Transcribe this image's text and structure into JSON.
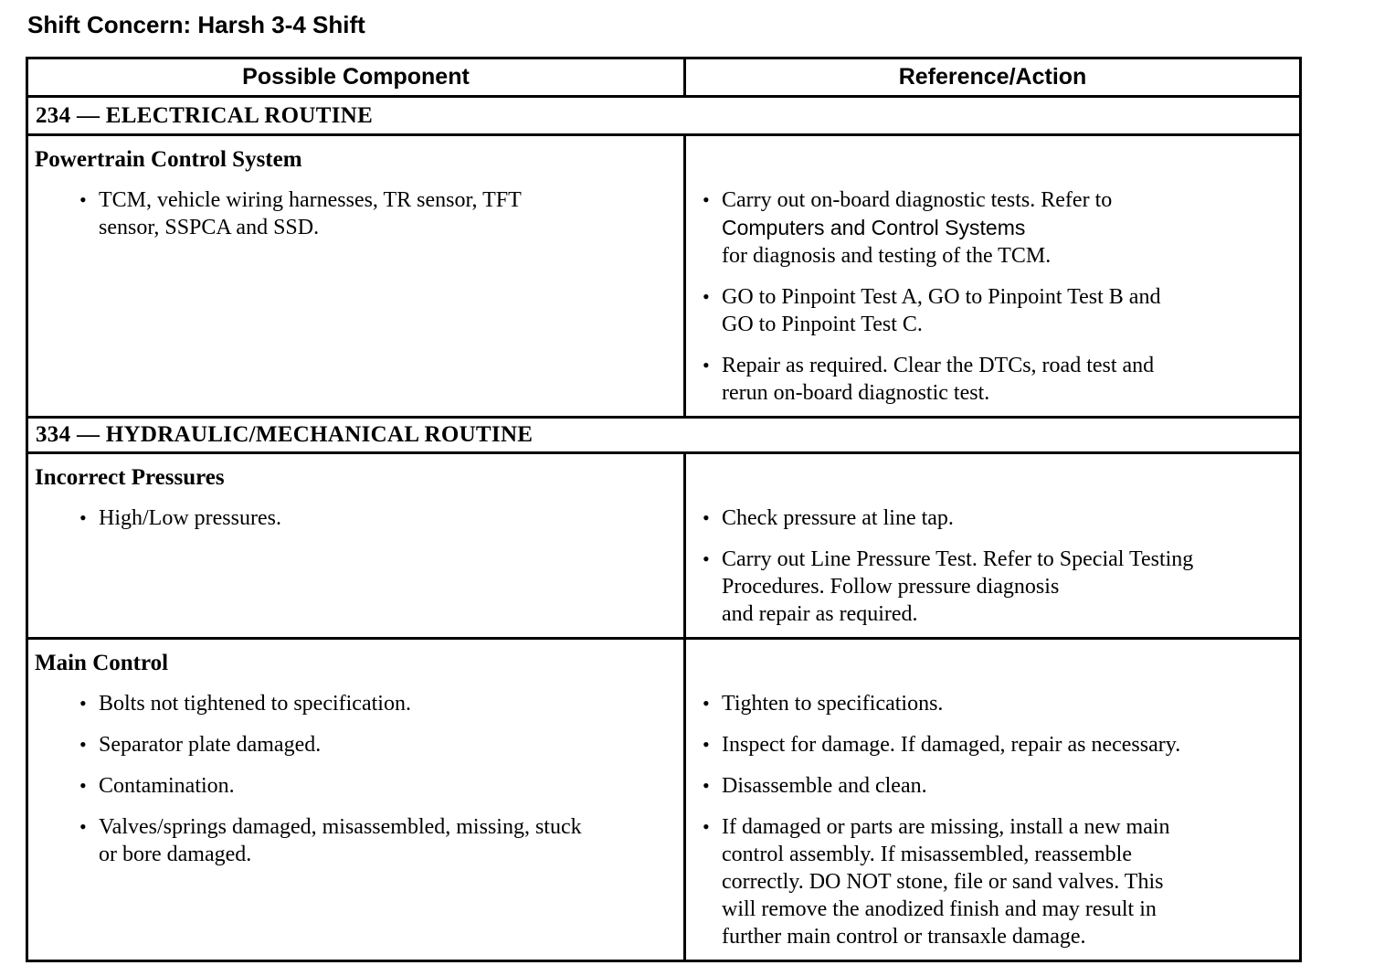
{
  "title": "Shift Concern: Harsh 3-4 Shift",
  "colors": {
    "text": "#000000",
    "background": "#ffffff",
    "border": "#000000"
  },
  "icons": {
    "bullet": "bullet-icon"
  },
  "table": {
    "columns": [
      "Possible Component",
      "Reference/Action"
    ],
    "sections": [
      {
        "heading": "234 — ELECTRICAL ROUTINE",
        "rows": [
          {
            "component": {
              "title": "Powertrain Control System",
              "bullets": [
                [
                  {
                    "t": "TCM, vehicle wiring harnesses, TR sensor, TFT",
                    "br": true
                  },
                  {
                    "t": "sensor, SSPCA and SSD."
                  }
                ]
              ]
            },
            "actions": {
              "bullets": [
                [
                  {
                    "t": "Carry out on-board diagnostic tests. Refer to",
                    "br": true
                  },
                  {
                    "t": "Computers and Control Systems",
                    "sans": true,
                    "link": true,
                    "br": true
                  },
                  {
                    "t": "for diagnosis and testing of the TCM."
                  }
                ],
                [
                  {
                    "t": "GO to Pinpoint Test A, GO to Pinpoint Test B and",
                    "br": true
                  },
                  {
                    "t": "GO to Pinpoint Test C."
                  }
                ],
                [
                  {
                    "t": "Repair as required. Clear the DTCs, road test and",
                    "br": true
                  },
                  {
                    "t": "rerun on-board diagnostic test."
                  }
                ]
              ]
            }
          }
        ]
      },
      {
        "heading": "334 — HYDRAULIC/MECHANICAL ROUTINE",
        "rows": [
          {
            "component": {
              "title": "Incorrect Pressures",
              "bullets": [
                [
                  {
                    "t": "High/Low pressures."
                  }
                ]
              ]
            },
            "actions": {
              "bullets": [
                [
                  {
                    "t": "Check pressure at line tap."
                  }
                ],
                [
                  {
                    "t": "Carry out Line Pressure Test. Refer to Special Testing",
                    "br": true
                  },
                  {
                    "t": "Procedures. Follow pressure diagnosis",
                    "br": true
                  },
                  {
                    "t": "and repair as required."
                  }
                ]
              ]
            }
          },
          {
            "component": {
              "title": "Main Control",
              "bullets": [
                [
                  {
                    "t": "Bolts not tightened to specification."
                  }
                ],
                [
                  {
                    "t": "Separator plate damaged."
                  }
                ],
                [
                  {
                    "t": "Contamination."
                  }
                ],
                [
                  {
                    "t": "Valves/springs damaged, misassembled, missing, stuck",
                    "br": true
                  },
                  {
                    "t": "or bore damaged."
                  }
                ]
              ]
            },
            "actions": {
              "bullets": [
                [
                  {
                    "t": "Tighten to specifications."
                  }
                ],
                [
                  {
                    "t": "Inspect for damage. If damaged, repair as necessary."
                  }
                ],
                [
                  {
                    "t": "Disassemble and clean."
                  }
                ],
                [
                  {
                    "t": "If damaged or parts are missing, install a new main",
                    "br": true
                  },
                  {
                    "t": "control assembly. If misassembled, reassemble",
                    "br": true
                  },
                  {
                    "t": "correctly. DO NOT stone, file or sand valves. This",
                    "br": true
                  },
                  {
                    "t": "will remove the anodized finish and may result in",
                    "br": true
                  },
                  {
                    "t": "further main control or transaxle damage."
                  }
                ]
              ]
            }
          }
        ]
      }
    ]
  }
}
